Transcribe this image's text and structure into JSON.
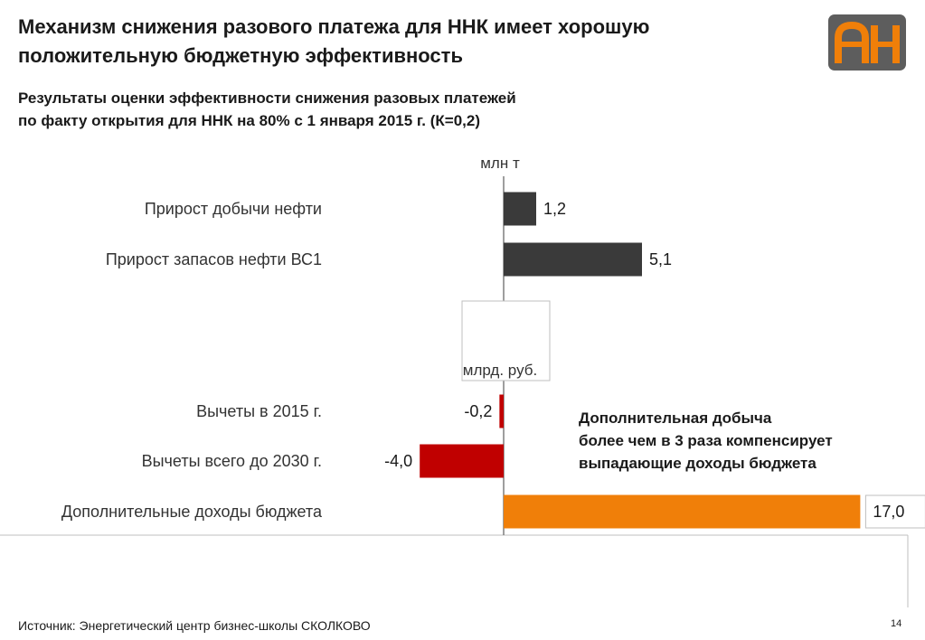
{
  "header": {
    "title_line1": "Механизм снижения разового платежа для ННК имеет хорошую",
    "title_line2": "положительную бюджетную эффективность",
    "logo_text": "АН"
  },
  "subtitle": {
    "line1": "Результаты оценки эффективности снижения разовых платежей",
    "line2": "по факту открытия для ННК на 80% с 1 января 2015 г. (К=0,2)"
  },
  "chart_data": {
    "type": "bar",
    "orientation": "horizontal",
    "units": [
      "млн т",
      "млрд. руб."
    ],
    "categories": [
      "Прирост добычи нефти",
      "Прирост запасов нефти ВС1",
      "Вычеты в 2015 г.",
      "Вычеты всего до 2030 г.",
      "Дополнительные доходы бюджета"
    ],
    "values": [
      1.2,
      5.1,
      -0.2,
      -4.0,
      17.0
    ],
    "value_labels": [
      "1,2",
      "5,1",
      "-0,2",
      "-4,0",
      "17,0"
    ],
    "unit_groups": [
      0,
      0,
      1,
      1,
      1
    ],
    "colors": [
      "#3a3a3a",
      "#3a3a3a",
      "#c00000",
      "#c00000",
      "#f07f09"
    ]
  },
  "annotation": {
    "line1": "Дополнительная добыча",
    "line2": "более чем в 3 раза компенсирует",
    "line3": "выпадающие доходы бюджета"
  },
  "footer": {
    "source": "Источник: Энергетический центр бизнес-школы СКОЛКОВО",
    "page_number": "14"
  }
}
